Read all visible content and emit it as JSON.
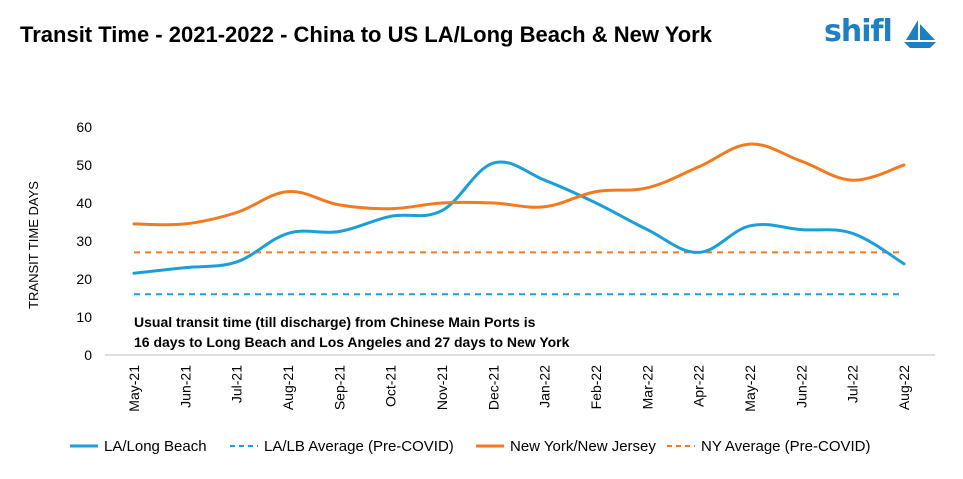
{
  "title": "Transit Time - 2021-2022 - China to US LA/Long Beach & New York",
  "logo": {
    "text": "shifl",
    "icon": "sailboat-icon",
    "color": "#1e7fc3"
  },
  "chart_data": {
    "type": "line",
    "title": "Transit Time - 2021-2022 - China to US LA/Long Beach & New York",
    "xlabel": "",
    "ylabel": "TRANSIT TIME DAYS",
    "ylim": [
      0,
      60
    ],
    "yticks": [
      0,
      10,
      20,
      30,
      40,
      50,
      60
    ],
    "grid": false,
    "legend_position": "bottom",
    "categories": [
      "May-21",
      "Jun-21",
      "Jul-21",
      "Aug-21",
      "Sep-21",
      "Oct-21",
      "Nov-21",
      "Dec-21",
      "Jan-22",
      "Feb-22",
      "Mar-22",
      "Apr-22",
      "May-22",
      "Jun-22",
      "Jul-22",
      "Aug-22"
    ],
    "series": [
      {
        "name": "LA/Long Beach",
        "style": "solid",
        "color": "#1b9fd8",
        "values": [
          21.5,
          23,
          24.5,
          32,
          32.5,
          36.5,
          38,
          50.5,
          46,
          40,
          33,
          27,
          34,
          33,
          32,
          24
        ]
      },
      {
        "name": "LA/LB Average (Pre-COVID)",
        "style": "dashed",
        "color": "#1b9fd8",
        "values": [
          16,
          16,
          16,
          16,
          16,
          16,
          16,
          16,
          16,
          16,
          16,
          16,
          16,
          16,
          16,
          16
        ]
      },
      {
        "name": "New York/New Jersey",
        "style": "solid",
        "color": "#f47a20",
        "values": [
          34.5,
          34.5,
          37.5,
          43,
          39.5,
          38.5,
          40,
          40,
          39,
          43,
          44,
          49.5,
          55.5,
          51,
          46,
          50
        ]
      },
      {
        "name": "NY Average (Pre-COVID)",
        "style": "dashed",
        "color": "#f47a20",
        "values": [
          27,
          27,
          27,
          27,
          27,
          27,
          27,
          27,
          27,
          27,
          27,
          27,
          27,
          27,
          27,
          27
        ]
      }
    ],
    "annotation": [
      "Usual transit time (till discharge) from Chinese Main Ports is",
      "16 days to Long Beach and Los Angeles and 27 days to New York"
    ]
  }
}
